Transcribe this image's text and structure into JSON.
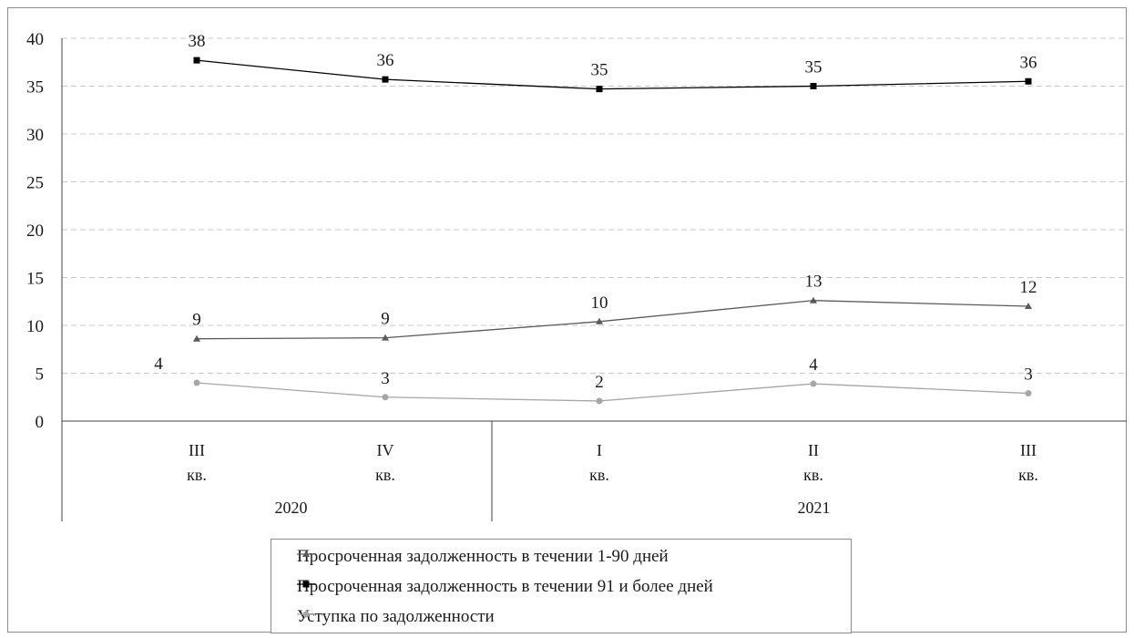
{
  "chart_data": {
    "type": "line",
    "title": "",
    "xlabel": "",
    "ylabel": "",
    "ylim": [
      0,
      40
    ],
    "yticks": [
      "0",
      "5",
      "10",
      "15",
      "20",
      "25",
      "30",
      "35",
      "40"
    ],
    "categories": [
      {
        "quarter": "III",
        "suffix": "кв."
      },
      {
        "quarter": "IV",
        "suffix": "кв."
      },
      {
        "quarter": "I",
        "suffix": "кв."
      },
      {
        "quarter": "II",
        "suffix": "кв."
      },
      {
        "quarter": "III",
        "suffix": "кв."
      }
    ],
    "groups": [
      {
        "label": "2020",
        "span": [
          0,
          1
        ]
      },
      {
        "label": "2021",
        "span": [
          2,
          4
        ]
      }
    ],
    "grid": true,
    "legend_position": "bottom",
    "series": [
      {
        "name": "Просроченная задолженность в течении 1-90 дней",
        "values": [
          8.6,
          8.7,
          10.4,
          12.6,
          12.0
        ],
        "labels": [
          "9",
          "9",
          "10",
          "13",
          "12"
        ],
        "color": "#595959",
        "marker": "triangle"
      },
      {
        "name": "Просроченная задолженность в течении 91 и более дней",
        "values": [
          37.7,
          35.7,
          34.7,
          35.0,
          35.5
        ],
        "labels": [
          "38",
          "36",
          "35",
          "35",
          "36"
        ],
        "color": "#000000",
        "marker": "square"
      },
      {
        "name": "Уступка по задолженности",
        "values": [
          4.0,
          2.5,
          2.1,
          3.9,
          2.9
        ],
        "labels": [
          "4",
          "3",
          "2",
          "4",
          "3"
        ],
        "color": "#a6a6a6",
        "marker": "circle"
      }
    ]
  }
}
